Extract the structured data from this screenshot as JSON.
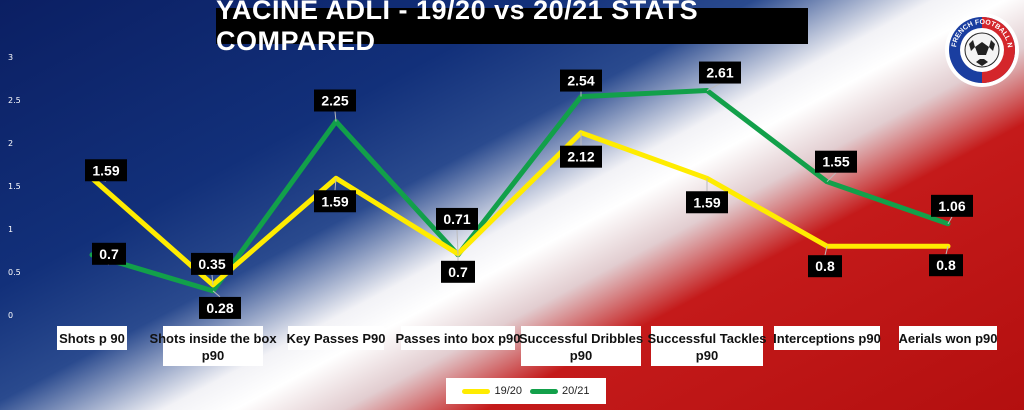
{
  "title": "YACINE ADLI - 19/20 vs 20/21 STATS COMPARED",
  "logo": {
    "text": "GET FRENCH FOOTBALL NEWS",
    "icon": "football-icon"
  },
  "colors": {
    "series_1920": "#ffec00",
    "series_2021": "#12a04a",
    "label_bg": "#000000"
  },
  "chart_data": {
    "type": "line",
    "title": "YACINE ADLI - 19/20 vs 20/21 STATS COMPARED",
    "categories": [
      [
        "Shots p 90"
      ],
      [
        "Shots inside the box",
        "p90"
      ],
      [
        "Key Passes P90"
      ],
      [
        "Passes into box p90"
      ],
      [
        "Successful Dribbles",
        "p90"
      ],
      [
        "Successful Tackles",
        "p90"
      ],
      [
        "Interceptions p90"
      ],
      [
        "Aerials won p90"
      ]
    ],
    "yticks": [
      "0",
      "0.5",
      "1",
      "1.5",
      "2",
      "2.5",
      "3"
    ],
    "ylim": [
      0,
      3
    ],
    "grid": false,
    "legend_position": "bottom",
    "series": [
      {
        "name": "19/20",
        "values": [
          1.59,
          0.35,
          1.59,
          0.71,
          2.12,
          1.59,
          0.8,
          0.8
        ],
        "labels": [
          "1.59",
          "0.35",
          "1.59",
          "0.71",
          "2.12",
          "1.59",
          "0.8",
          "0.8"
        ]
      },
      {
        "name": "20/21",
        "values": [
          0.7,
          0.28,
          2.25,
          0.7,
          2.54,
          2.61,
          1.55,
          1.06
        ],
        "labels": [
          "0.7",
          "0.28",
          "2.25",
          "0.7",
          "2.54",
          "2.61",
          "1.55",
          "1.06"
        ]
      }
    ]
  },
  "legend": {
    "items": [
      "19/20",
      "20/21"
    ]
  }
}
